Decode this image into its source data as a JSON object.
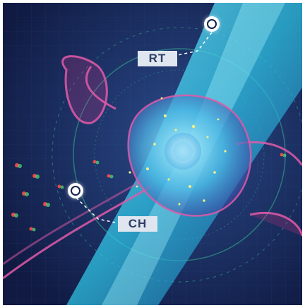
{
  "labels": {
    "rt": "RT",
    "ch": "CH"
  },
  "colors": {
    "background": "#14224e",
    "tissue_cyan": "#35d9f2",
    "membrane_pink": "#e05aa8",
    "particle_yellow": "#f5ef8a",
    "label_bg": "#dfe6f0",
    "label_text": "#2e3f66"
  },
  "icons": {
    "marker": "circle-target-icon"
  }
}
